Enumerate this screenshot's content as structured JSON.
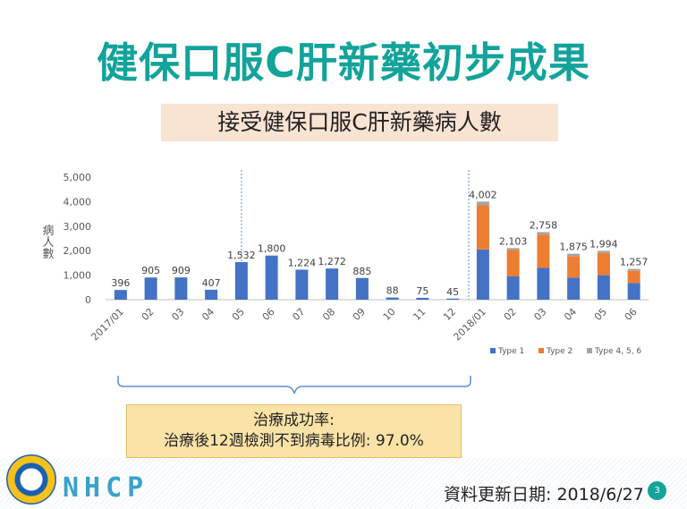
{
  "slide": {
    "title": "健保口服C肝新藥初步成果",
    "subtitle": "接受健保口服C肝新藥病人數",
    "result_line1": "治療成功率:",
    "result_line2": "治療後12週檢測不到病毒比例: 97.0%",
    "brand": "NHCP",
    "update_date": "資料更新日期: 2018/6/27",
    "page_number": "3",
    "colors": {
      "title": "#12a39a",
      "subtitle_bg": "#f9e3d3",
      "result_bg": "#fbe3a7",
      "type1": "#4472c4",
      "type2": "#ed7d31",
      "type456": "#a5a5a5"
    }
  },
  "chart_data": {
    "type": "bar",
    "stacked": true,
    "ylabel": "病人數",
    "ylim": [
      0,
      5000
    ],
    "yticks": [
      "0",
      "1,000",
      "2,000",
      "3,000",
      "4,000",
      "5,000"
    ],
    "categories": [
      "2017/01",
      "02",
      "03",
      "04",
      "05",
      "06",
      "07",
      "08",
      "09",
      "10",
      "11",
      "12",
      "2018/01",
      "02",
      "03",
      "04",
      "05",
      "06"
    ],
    "totals": [
      "396",
      "905",
      "909",
      "407",
      "1,532",
      "1,800",
      "1,224",
      "1,272",
      "885",
      "88",
      "75",
      "45",
      "4,002",
      "2,103",
      "2,758",
      "1,875",
      "1,994",
      "1,257"
    ],
    "series": [
      {
        "name": "Type 1",
        "values": [
          396,
          905,
          909,
          407,
          1532,
          1800,
          1224,
          1272,
          885,
          88,
          75,
          45,
          2050,
          950,
          1300,
          900,
          1000,
          680
        ]
      },
      {
        "name": "Type 2",
        "values": [
          0,
          0,
          0,
          0,
          0,
          0,
          0,
          0,
          0,
          0,
          0,
          0,
          1800,
          1080,
          1350,
          880,
          900,
          500
        ]
      },
      {
        "name": "Type 4, 5, 6",
        "values": [
          0,
          0,
          0,
          0,
          0,
          0,
          0,
          0,
          0,
          0,
          0,
          0,
          152,
          73,
          108,
          95,
          94,
          77
        ]
      }
    ],
    "legend_position": "bottom-right",
    "grid": false
  }
}
